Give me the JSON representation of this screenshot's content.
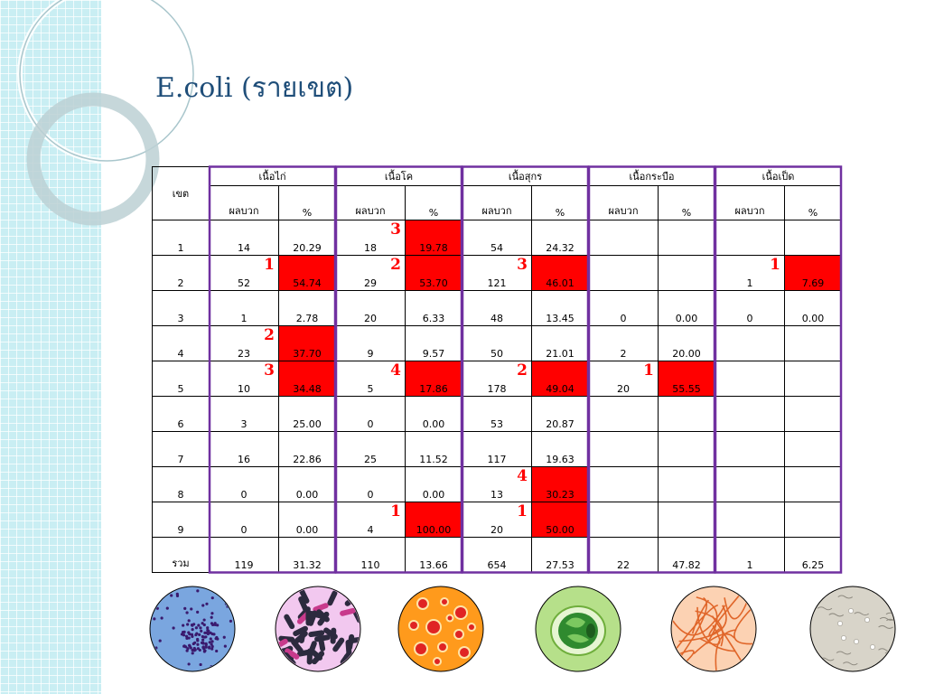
{
  "title": "E.coli (รายเขต)",
  "colors": {
    "highlight": "#ff0000",
    "frame": "#7030a0",
    "title": "#1f4e79",
    "rank": "#ff0000"
  },
  "table": {
    "region_header": "เขต",
    "groups": [
      "เนื้อไก่",
      "เนื้อโค",
      "เนื้อสุกร",
      "เนื้อกระบือ",
      "เนื้อเป็ด"
    ],
    "sub_headers": [
      "ผลบวก",
      "%"
    ],
    "rows": [
      {
        "region": "1",
        "cells": [
          {
            "pos": "14",
            "pct": "20.29",
            "red": false,
            "rank": ""
          },
          {
            "pos": "18",
            "pct": "19.78",
            "red": true,
            "rank": "3"
          },
          {
            "pos": "54",
            "pct": "24.32",
            "red": false,
            "rank": ""
          },
          {
            "pos": "",
            "pct": "",
            "red": false,
            "rank": ""
          },
          {
            "pos": "",
            "pct": "",
            "red": false,
            "rank": ""
          }
        ]
      },
      {
        "region": "2",
        "cells": [
          {
            "pos": "52",
            "pct": "54.74",
            "red": true,
            "rank": "1"
          },
          {
            "pos": "29",
            "pct": "53.70",
            "red": true,
            "rank": "2"
          },
          {
            "pos": "121",
            "pct": "46.01",
            "red": true,
            "rank": "3"
          },
          {
            "pos": "",
            "pct": "",
            "red": false,
            "rank": ""
          },
          {
            "pos": "1",
            "pct": "7.69",
            "red": true,
            "rank": "1"
          }
        ]
      },
      {
        "region": "3",
        "cells": [
          {
            "pos": "1",
            "pct": "2.78",
            "red": false,
            "rank": ""
          },
          {
            "pos": "20",
            "pct": "6.33",
            "red": false,
            "rank": ""
          },
          {
            "pos": "48",
            "pct": "13.45",
            "red": false,
            "rank": ""
          },
          {
            "pos": "0",
            "pct": "0.00",
            "red": false,
            "rank": ""
          },
          {
            "pos": "0",
            "pct": "0.00",
            "red": false,
            "rank": ""
          }
        ]
      },
      {
        "region": "4",
        "cells": [
          {
            "pos": "23",
            "pct": "37.70",
            "red": true,
            "rank": "2"
          },
          {
            "pos": "9",
            "pct": "9.57",
            "red": false,
            "rank": ""
          },
          {
            "pos": "50",
            "pct": "21.01",
            "red": false,
            "rank": ""
          },
          {
            "pos": "2",
            "pct": "20.00",
            "red": false,
            "rank": ""
          },
          {
            "pos": "",
            "pct": "",
            "red": false,
            "rank": ""
          }
        ]
      },
      {
        "region": "5",
        "cells": [
          {
            "pos": "10",
            "pct": "34.48",
            "red": true,
            "rank": "3"
          },
          {
            "pos": "5",
            "pct": "17.86",
            "red": true,
            "rank": "4"
          },
          {
            "pos": "178",
            "pct": "49.04",
            "red": true,
            "rank": "2"
          },
          {
            "pos": "20",
            "pct": "55.55",
            "red": true,
            "rank": "1"
          },
          {
            "pos": "",
            "pct": "",
            "red": false,
            "rank": ""
          }
        ]
      },
      {
        "region": "6",
        "cells": [
          {
            "pos": "3",
            "pct": "25.00",
            "red": false,
            "rank": ""
          },
          {
            "pos": "0",
            "pct": "0.00",
            "red": false,
            "rank": ""
          },
          {
            "pos": "53",
            "pct": "20.87",
            "red": false,
            "rank": ""
          },
          {
            "pos": "",
            "pct": "",
            "red": false,
            "rank": ""
          },
          {
            "pos": "",
            "pct": "",
            "red": false,
            "rank": ""
          }
        ]
      },
      {
        "region": "7",
        "cells": [
          {
            "pos": "16",
            "pct": "22.86",
            "red": false,
            "rank": ""
          },
          {
            "pos": "25",
            "pct": "11.52",
            "red": false,
            "rank": ""
          },
          {
            "pos": "117",
            "pct": "19.63",
            "red": false,
            "rank": ""
          },
          {
            "pos": "",
            "pct": "",
            "red": false,
            "rank": ""
          },
          {
            "pos": "",
            "pct": "",
            "red": false,
            "rank": ""
          }
        ]
      },
      {
        "region": "8",
        "cells": [
          {
            "pos": "0",
            "pct": "0.00",
            "red": false,
            "rank": ""
          },
          {
            "pos": "0",
            "pct": "0.00",
            "red": false,
            "rank": ""
          },
          {
            "pos": "13",
            "pct": "30.23",
            "red": true,
            "rank": "4"
          },
          {
            "pos": "",
            "pct": "",
            "red": false,
            "rank": ""
          },
          {
            "pos": "",
            "pct": "",
            "red": false,
            "rank": ""
          }
        ]
      },
      {
        "region": "9",
        "cells": [
          {
            "pos": "0",
            "pct": "0.00",
            "red": false,
            "rank": ""
          },
          {
            "pos": "4",
            "pct": "100.00",
            "red": true,
            "rank": "1"
          },
          {
            "pos": "20",
            "pct": "50.00",
            "red": true,
            "rank": "1"
          },
          {
            "pos": "",
            "pct": "",
            "red": false,
            "rank": ""
          },
          {
            "pos": "",
            "pct": "",
            "red": false,
            "rank": ""
          }
        ]
      },
      {
        "region": "รวม",
        "cells": [
          {
            "pos": "119",
            "pct": "31.32",
            "red": false,
            "rank": ""
          },
          {
            "pos": "110",
            "pct": "13.66",
            "red": false,
            "rank": ""
          },
          {
            "pos": "654",
            "pct": "27.53",
            "red": false,
            "rank": ""
          },
          {
            "pos": "22",
            "pct": "47.82",
            "red": false,
            "rank": ""
          },
          {
            "pos": "1",
            "pct": "6.25",
            "red": false,
            "rank": ""
          }
        ]
      }
    ]
  },
  "microscopy_images": [
    {
      "icon": "purple-cocci-slide-icon"
    },
    {
      "icon": "rod-bacteria-slide-icon"
    },
    {
      "icon": "orange-colony-slide-icon"
    },
    {
      "icon": "green-cell-slide-icon"
    },
    {
      "icon": "orange-filament-slide-icon"
    },
    {
      "icon": "grey-spore-slide-icon"
    }
  ]
}
